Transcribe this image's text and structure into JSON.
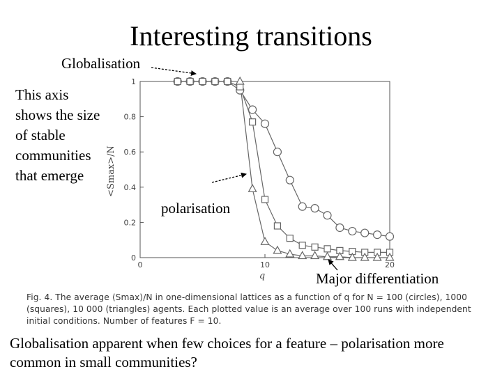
{
  "slide": {
    "title": "Interesting transitions",
    "label_globalisation": "Globalisation",
    "axis_note": "This axis shows the size of stable communities that emerge",
    "label_polarisation": "polarisation",
    "label_major": "Major differentiation",
    "caption": "Fig. 4. The average ⟨Smax⟩/N in one-dimensional lattices as a function of q for N = 100 (circles), 1000 (squares), 10 000 (triangles) agents. Each plotted value is an average over 100 runs with independent initial conditions. Number of features F = 10.",
    "footer": "Globalisation apparent when few choices for a feature – polarisation more common in small communities?"
  },
  "chart_data": {
    "type": "line",
    "xlabel": "q",
    "ylabel": "<Smax>/N",
    "xlim": [
      0,
      20
    ],
    "ylim": [
      0,
      1
    ],
    "x_ticks": [
      0,
      10,
      20
    ],
    "y_ticks": [
      0,
      0.2,
      0.4,
      0.6,
      0.8,
      1
    ],
    "y_tick_labels": [
      "0",
      "0.2",
      "0.4",
      "0.6",
      "0.8",
      "1"
    ],
    "grid": false,
    "series": [
      {
        "marker": "circle",
        "x": [
          3,
          4,
          5,
          6,
          7,
          8,
          9,
          10,
          11,
          12,
          13,
          14,
          15,
          16,
          17,
          18,
          19,
          20
        ],
        "y": [
          1.0,
          1.0,
          1.0,
          1.0,
          1.0,
          0.95,
          0.84,
          0.76,
          0.6,
          0.44,
          0.29,
          0.28,
          0.24,
          0.17,
          0.15,
          0.14,
          0.13,
          0.12
        ]
      },
      {
        "marker": "square",
        "x": [
          3,
          4,
          5,
          6,
          7,
          8,
          9,
          10,
          11,
          12,
          13,
          14,
          15,
          16,
          17,
          18,
          19,
          20
        ],
        "y": [
          1.0,
          1.0,
          1.0,
          1.0,
          1.0,
          0.97,
          0.77,
          0.33,
          0.18,
          0.11,
          0.07,
          0.06,
          0.05,
          0.04,
          0.035,
          0.03,
          0.03,
          0.03
        ]
      },
      {
        "marker": "triangle",
        "x": [
          8,
          9,
          10,
          11,
          12,
          13,
          14,
          15,
          16,
          17,
          18,
          19,
          20
        ],
        "y": [
          1.0,
          0.39,
          0.09,
          0.04,
          0.02,
          0.01,
          0.01,
          0.005,
          0.005,
          0.0,
          0.0,
          0.0,
          0.0
        ]
      }
    ]
  }
}
